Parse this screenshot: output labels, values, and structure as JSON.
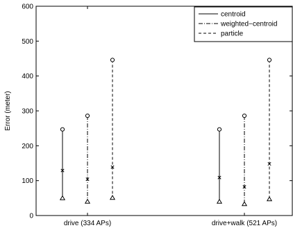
{
  "chart_data": {
    "type": "scatter",
    "title": "",
    "xlabel": "",
    "ylabel": "Error (meter)",
    "ylim": [
      0,
      600
    ],
    "y_ticks": [
      0,
      100,
      200,
      300,
      400,
      500,
      600
    ],
    "grid": false,
    "legend_position": "top-right",
    "categories": [
      "drive (334 APs)",
      "drive+walk (521 APs)"
    ],
    "series": [
      {
        "name": "centroid",
        "line_style": "solid",
        "color": "#000000",
        "max": [
          247,
          247
        ],
        "mean": [
          129,
          109
        ],
        "min": [
          50,
          40
        ]
      },
      {
        "name": "weighted−centroid",
        "line_style": "dashdot",
        "color": "#000000",
        "max": [
          286,
          286
        ],
        "mean": [
          104,
          82
        ],
        "min": [
          40,
          33
        ]
      },
      {
        "name": "particle",
        "line_style": "dashed",
        "color": "#000000",
        "max": [
          446,
          446
        ],
        "mean": [
          139,
          148
        ],
        "min": [
          51,
          47
        ]
      }
    ],
    "markers": {
      "max": "circle",
      "mean": "x",
      "min": "triangle"
    }
  }
}
